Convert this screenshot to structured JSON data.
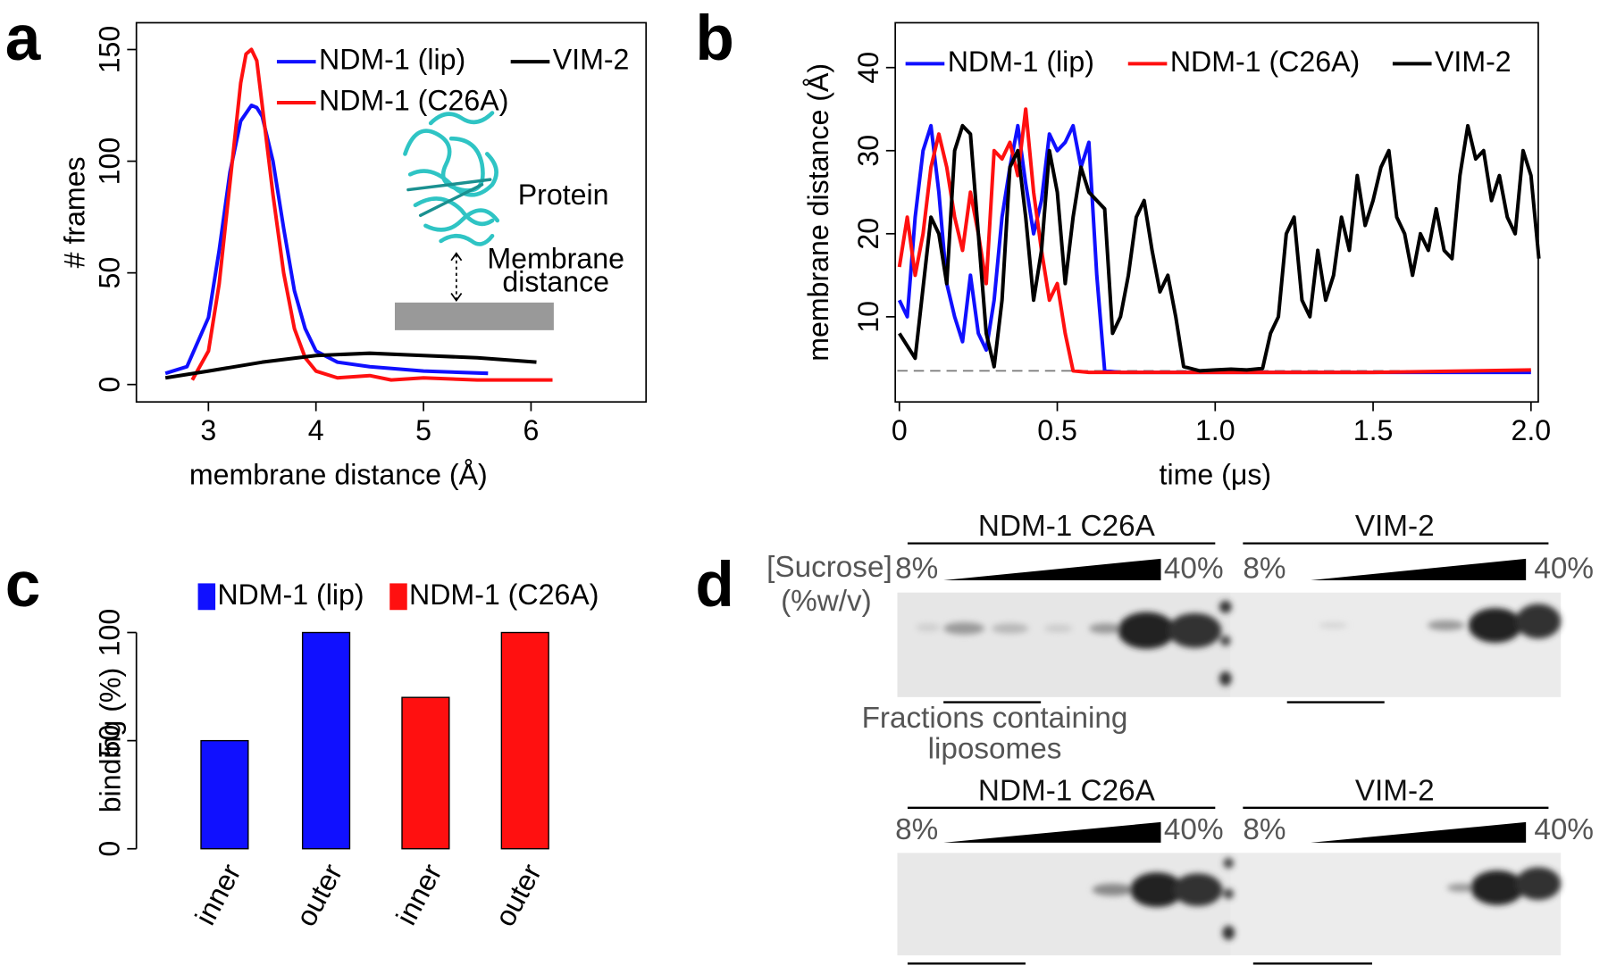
{
  "chart_data": [
    {
      "type": "line",
      "panel": "a",
      "xlabel": "membrane distance (Å)",
      "ylabel": "# frames",
      "xlim": [
        2.33,
        7.07
      ],
      "ylim": [
        -7.8,
        162
      ],
      "xticks": [
        3,
        4,
        5,
        6
      ],
      "yticks": [
        0,
        50,
        100,
        150
      ],
      "frame": true,
      "annotations": [
        "Protein",
        "Membrane",
        "distance"
      ],
      "series": [
        {
          "name": "NDM-1 (lip)",
          "color": "#1010ff",
          "x": [
            2.6,
            2.8,
            3.0,
            3.1,
            3.2,
            3.3,
            3.4,
            3.45,
            3.5,
            3.6,
            3.7,
            3.8,
            3.9,
            4.0,
            4.2,
            4.5,
            5.0,
            5.6
          ],
          "values": [
            5,
            8,
            30,
            60,
            95,
            118,
            125,
            124,
            120,
            100,
            70,
            42,
            25,
            15,
            10,
            8,
            6,
            5
          ]
        },
        {
          "name": "NDM-1 (C26A)",
          "color": "#ff1010",
          "x": [
            2.85,
            3.0,
            3.1,
            3.2,
            3.3,
            3.35,
            3.4,
            3.45,
            3.5,
            3.6,
            3.7,
            3.8,
            3.9,
            4.0,
            4.2,
            4.5,
            4.7,
            5.0,
            5.5,
            6.2
          ],
          "values": [
            2,
            15,
            45,
            90,
            135,
            148,
            150,
            145,
            125,
            85,
            50,
            25,
            12,
            6,
            3,
            4,
            2,
            3,
            2,
            2
          ]
        },
        {
          "name": "VIM-2",
          "color": "#000000",
          "x": [
            2.6,
            3.0,
            3.5,
            4.0,
            4.5,
            5.0,
            5.5,
            6.05
          ],
          "values": [
            3,
            6,
            10,
            13,
            14,
            13,
            12,
            10
          ]
        }
      ]
    },
    {
      "type": "line",
      "panel": "b",
      "xlabel": "time (μs)",
      "ylabel": "membrane distance (Å)",
      "xlim": [
        -0.013,
        2.023
      ],
      "ylim": [
        -0.25,
        45.4
      ],
      "frame": true,
      "xticks": [
        0,
        0.5,
        {
          "value": 1,
          "label": "1.0"
        },
        1.5,
        {
          "value": 2,
          "label": "2.0"
        }
      ],
      "yticks": [
        10,
        20,
        30,
        40
      ],
      "hline": 3.5,
      "series": [
        {
          "name": "NDM-1 (lip)",
          "color": "#1010ff",
          "x": [
            0,
            0.025,
            0.05,
            0.075,
            0.1,
            0.125,
            0.15,
            0.175,
            0.2,
            0.225,
            0.25,
            0.275,
            0.3,
            0.325,
            0.35,
            0.375,
            0.4,
            0.425,
            0.45,
            0.475,
            0.5,
            0.525,
            0.55,
            0.575,
            0.6,
            0.625,
            0.65,
            0.7,
            1.0,
            1.5,
            2.0
          ],
          "values": [
            12,
            10,
            22,
            30,
            33,
            25,
            14,
            10,
            7,
            15,
            8,
            6,
            12,
            22,
            28,
            33,
            26,
            20,
            24,
            32,
            30,
            31,
            33,
            28,
            31,
            15,
            3.5,
            3.3,
            3.3,
            3.3,
            3.3
          ]
        },
        {
          "name": "NDM-1 (C26A)",
          "color": "#ff1010",
          "x": [
            0,
            0.025,
            0.05,
            0.075,
            0.1,
            0.125,
            0.15,
            0.175,
            0.2,
            0.225,
            0.25,
            0.275,
            0.3,
            0.325,
            0.35,
            0.375,
            0.4,
            0.425,
            0.45,
            0.475,
            0.5,
            0.525,
            0.55,
            0.6,
            1.0,
            1.5,
            2.0
          ],
          "values": [
            16,
            22,
            15,
            20,
            28,
            32,
            28,
            22,
            18,
            25,
            20,
            14,
            30,
            29,
            31,
            27,
            35,
            25,
            18,
            12,
            14,
            8,
            3.5,
            3.3,
            3.3,
            3.3,
            3.6
          ]
        },
        {
          "name": "VIM-2",
          "color": "#000000",
          "x": [
            0,
            0.05,
            0.1,
            0.125,
            0.15,
            0.175,
            0.2,
            0.225,
            0.25,
            0.275,
            0.3,
            0.325,
            0.35,
            0.375,
            0.4,
            0.425,
            0.45,
            0.475,
            0.5,
            0.525,
            0.55,
            0.575,
            0.6,
            0.625,
            0.65,
            0.675,
            0.7,
            0.725,
            0.75,
            0.775,
            0.8,
            0.825,
            0.85,
            0.875,
            0.9,
            0.95,
            1.0,
            1.05,
            1.1,
            1.15,
            1.175,
            1.2,
            1.225,
            1.25,
            1.275,
            1.3,
            1.325,
            1.35,
            1.375,
            1.4,
            1.425,
            1.45,
            1.475,
            1.5,
            1.525,
            1.55,
            1.575,
            1.6,
            1.625,
            1.65,
            1.675,
            1.7,
            1.725,
            1.75,
            1.775,
            1.8,
            1.825,
            1.85,
            1.875,
            1.9,
            1.925,
            1.95,
            1.975,
            2.0,
            2.025
          ],
          "values": [
            8,
            5,
            22,
            20,
            14,
            30,
            33,
            32,
            20,
            8,
            4,
            12,
            28,
            30,
            22,
            12,
            18,
            30,
            25,
            14,
            22,
            28,
            25,
            24,
            23,
            8,
            10,
            15,
            22,
            24,
            18,
            13,
            15,
            10,
            4,
            3.5,
            3.6,
            3.7,
            3.6,
            3.8,
            8,
            10,
            20,
            22,
            12,
            10,
            18,
            12,
            15,
            22,
            18,
            27,
            21,
            24,
            28,
            30,
            22,
            20,
            15,
            20,
            18,
            23,
            18,
            17,
            27,
            33,
            29,
            30,
            24,
            27,
            22,
            20,
            30,
            27,
            17
          ]
        }
      ]
    },
    {
      "type": "bar",
      "panel": "c",
      "ylabel": "binding (%)",
      "ylim": [
        0,
        100
      ],
      "yticks": [
        0,
        50,
        100
      ],
      "series": [
        {
          "name": "NDM-1 (lip)",
          "color": "#1010ff",
          "categories": [
            "inner",
            "outer"
          ],
          "values": [
            50,
            100
          ]
        },
        {
          "name": "NDM-1 (C26A)",
          "color": "#ff1010",
          "categories": [
            "inner",
            "outer"
          ],
          "values": [
            70,
            100
          ]
        }
      ]
    }
  ],
  "gel": {
    "panel": "d",
    "axis_label": [
      "[Sucrose]",
      "(%w/v)"
    ],
    "note": [
      "Fractions containing",
      "liposomes"
    ],
    "rows": [
      {
        "groups": [
          {
            "title": "NDM-1 C26A",
            "low": "8%",
            "high": "40%"
          },
          {
            "title": "VIM-2",
            "low": "8%",
            "high": "40%"
          }
        ]
      },
      {
        "groups": [
          {
            "title": "NDM-1 C26A",
            "low": "8%",
            "high": "40%"
          },
          {
            "title": "VIM-2",
            "low": "8%",
            "high": "40%"
          }
        ]
      }
    ]
  }
}
